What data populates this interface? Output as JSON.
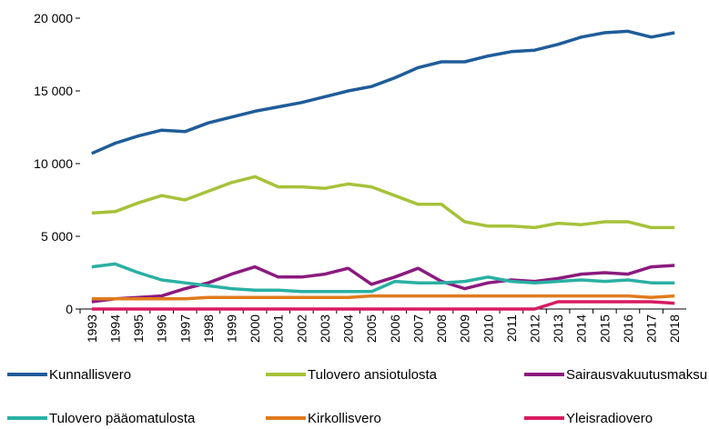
{
  "chart_data": {
    "type": "line",
    "x": [
      "1993",
      "1994",
      "1995",
      "1996",
      "1997",
      "1998",
      "1999",
      "2000",
      "2001",
      "2002",
      "2003",
      "2004",
      "2005",
      "2006",
      "2007",
      "2008",
      "2009",
      "2010",
      "2011",
      "2012",
      "2013",
      "2014",
      "2015",
      "2016",
      "2017",
      "2018"
    ],
    "ylim": [
      0,
      20000
    ],
    "yticks": [
      0,
      {
        "value": 5000,
        "label": "5 000"
      },
      {
        "value": 10000,
        "label": "10 000"
      },
      {
        "value": 15000,
        "label": "15 000"
      },
      {
        "value": 20000,
        "label": "20 000"
      }
    ],
    "series": [
      {
        "name": "Kunnallisvero",
        "color": "#1f5c99",
        "values": [
          10700,
          11400,
          11900,
          12300,
          12200,
          12800,
          13200,
          13600,
          13900,
          14200,
          14600,
          15000,
          15300,
          15900,
          16600,
          17000,
          17000,
          17400,
          17700,
          17800,
          18200,
          18700,
          19000,
          19100,
          18700,
          19000
        ]
      },
      {
        "name": "Tulovero ansiotulosta",
        "color": "#a6c23a",
        "values": [
          6600,
          6700,
          7300,
          7800,
          7500,
          8100,
          8700,
          9100,
          8400,
          8400,
          8300,
          8600,
          8400,
          7800,
          7200,
          7200,
          6000,
          5700,
          5700,
          5600,
          5900,
          5800,
          6000,
          6000,
          5600,
          5600
        ]
      },
      {
        "name": "Sairausvakuutusmaksu",
        "color": "#8b1a7e",
        "values": [
          500,
          700,
          800,
          900,
          1400,
          1800,
          2400,
          2900,
          2200,
          2200,
          2400,
          2800,
          1700,
          2200,
          2800,
          1900,
          1400,
          1800,
          2000,
          1900,
          2100,
          2400,
          2500,
          2400,
          2900,
          3000
        ]
      },
      {
        "name": "Tulovero pääomatulosta",
        "color": "#2ab0a3",
        "values": [
          2900,
          3100,
          2500,
          2000,
          1800,
          1600,
          1400,
          1300,
          1300,
          1200,
          1200,
          1200,
          1200,
          1900,
          1800,
          1800,
          1900,
          2200,
          1900,
          1800,
          1900,
          2000,
          1900,
          2000,
          1800,
          1800
        ]
      },
      {
        "name": "Kirkollisvero",
        "color": "#e07b1e",
        "values": [
          700,
          700,
          700,
          700,
          700,
          800,
          800,
          800,
          800,
          800,
          800,
          800,
          900,
          900,
          900,
          900,
          900,
          900,
          900,
          900,
          900,
          900,
          900,
          900,
          800,
          900
        ]
      },
      {
        "name": "Yleisradiovero",
        "color": "#d81b60",
        "values": [
          0,
          0,
          0,
          0,
          0,
          0,
          0,
          0,
          0,
          0,
          0,
          0,
          0,
          0,
          0,
          0,
          0,
          0,
          0,
          0,
          500,
          500,
          500,
          500,
          500,
          400
        ]
      }
    ]
  }
}
